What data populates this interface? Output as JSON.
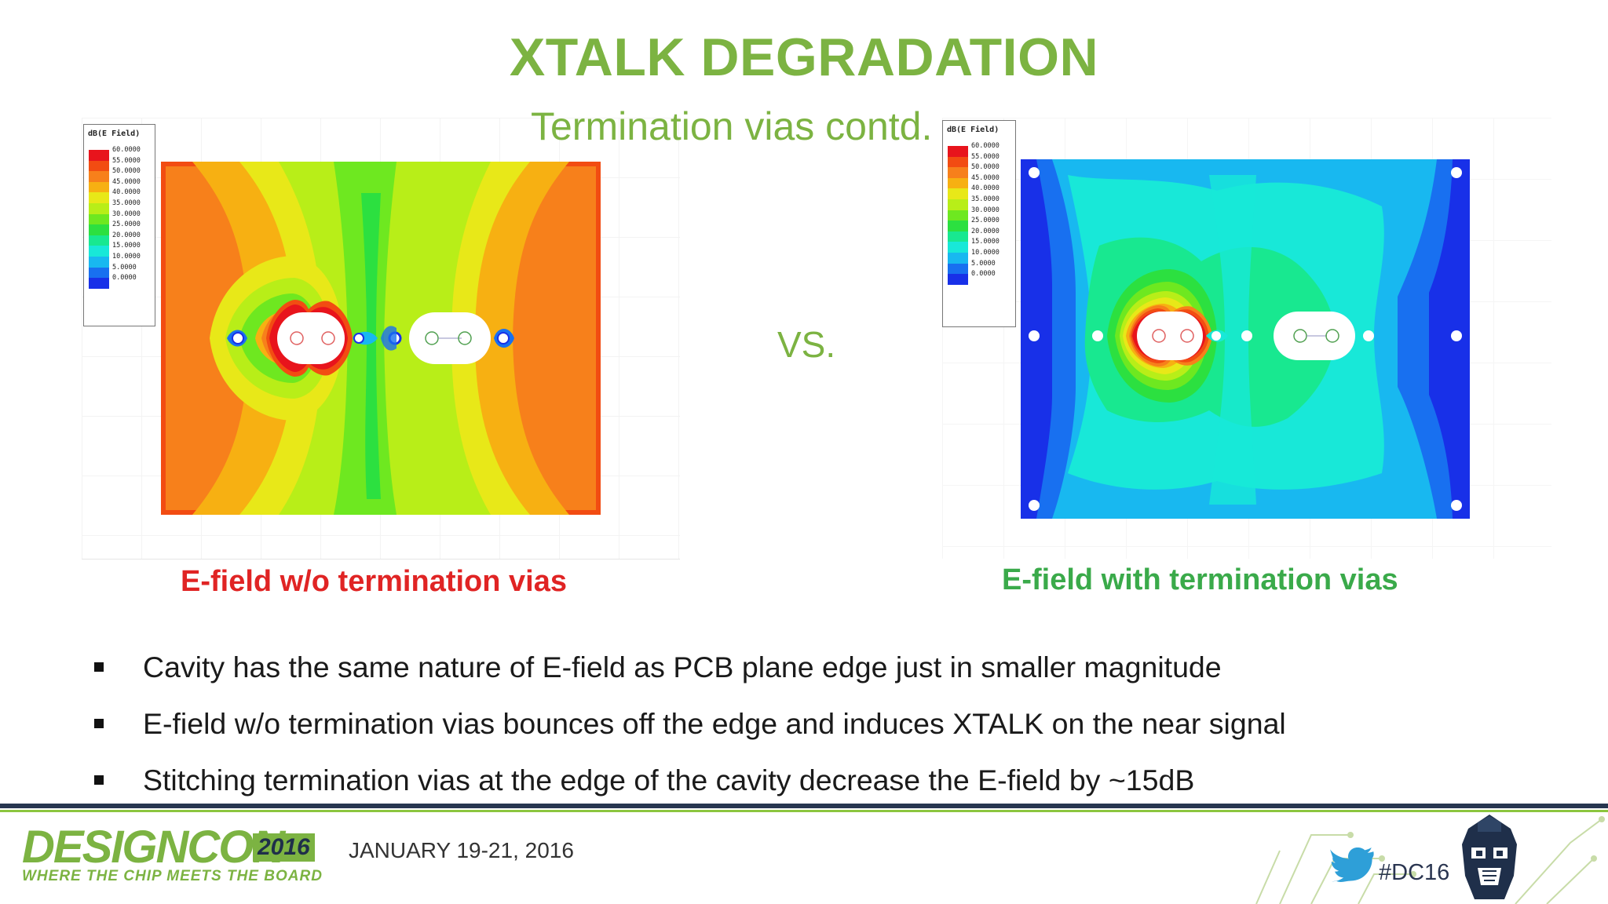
{
  "slide": {
    "title": "XTALK DEGRADATION",
    "subtitle": "Termination vias contd.",
    "vs": "VS."
  },
  "legend": {
    "title": "dB(E Field)",
    "levels": [
      "60.0000",
      "55.0000",
      "50.0000",
      "45.0000",
      "40.0000",
      "35.0000",
      "30.0000",
      "25.0000",
      "20.0000",
      "15.0000",
      "10.0000",
      "5.0000",
      "0.0000"
    ],
    "colors": [
      "#e8141c",
      "#f24c12",
      "#f7801b",
      "#f7b012",
      "#e8e818",
      "#b8ee18",
      "#6ee820",
      "#2ce040",
      "#18e890",
      "#18e8d8",
      "#18b8f0",
      "#1870f0",
      "#1830e8"
    ]
  },
  "captions": {
    "left": "E-field w/o termination vias",
    "right": "E-field with termination vias"
  },
  "bullets": [
    "Cavity has the same nature of E-field as PCB plane edge just in smaller magnitude",
    "E-field w/o termination vias bounces off the edge and induces XTALK on the near signal",
    "Stitching termination vias at the edge of the cavity decrease the E-field by ~15dB"
  ],
  "footer": {
    "logo": "DESIGNCON",
    "year": "2016",
    "tagline": "WHERE THE CHIP MEETS THE BOARD",
    "date": "JANUARY 19-21, 2016",
    "hashtag": "#DC16"
  },
  "colors": {
    "accent_green": "#7cb342",
    "caption_red": "#e02424",
    "caption_green": "#3aaa4a",
    "footer_navy": "#27364f"
  }
}
